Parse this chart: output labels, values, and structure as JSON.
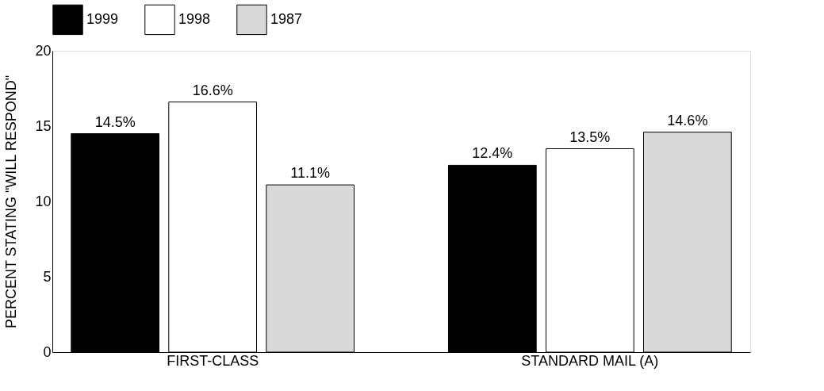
{
  "chart_data": {
    "type": "bar",
    "ylabel": "PERCENT STATING \"WILL RESPOND\"",
    "categories": [
      "FIRST-CLASS",
      "STANDARD MAIL (A)"
    ],
    "series": [
      {
        "name": "1999",
        "color": "#000000",
        "values": [
          14.5,
          12.4
        ],
        "value_labels": [
          "14.5%",
          "12.4%"
        ]
      },
      {
        "name": "1998",
        "color": "#ffffff",
        "values": [
          16.6,
          13.5
        ],
        "value_labels": [
          "16.6%",
          "13.5%"
        ]
      },
      {
        "name": "1987",
        "color": "#d9d9d9",
        "values": [
          11.1,
          14.6
        ],
        "value_labels": [
          "11.1%",
          "14.6%"
        ]
      }
    ],
    "ylim": [
      0,
      20
    ],
    "yticks": [
      0,
      5,
      10,
      15,
      20
    ],
    "grid": false,
    "legend": "top"
  }
}
